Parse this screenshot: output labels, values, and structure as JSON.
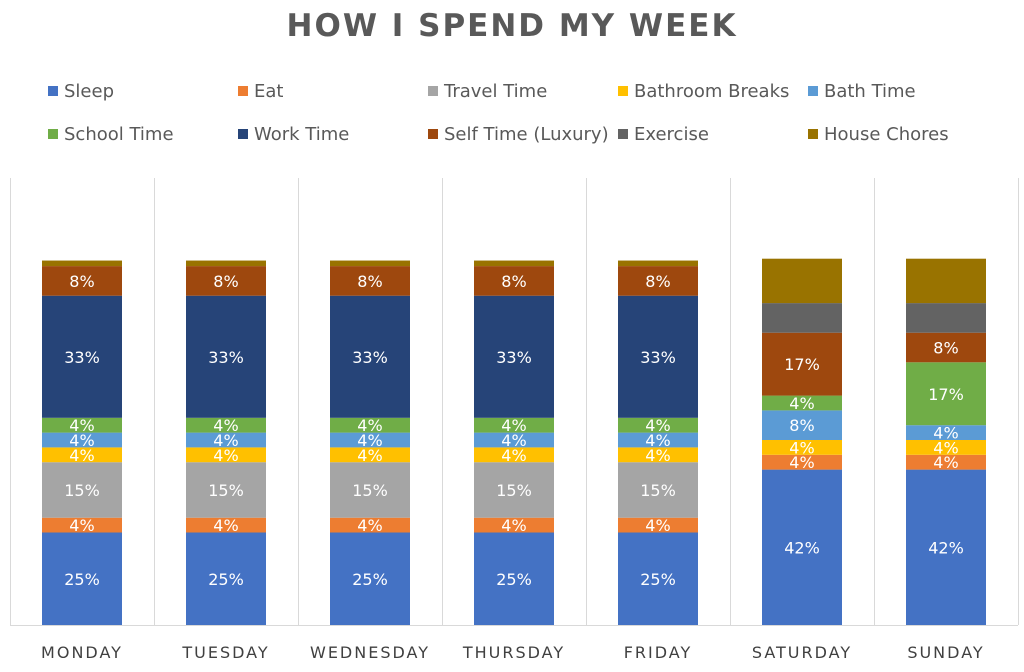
{
  "chart_data": {
    "type": "bar",
    "stacked": true,
    "title": "HOW I SPEND MY WEEK",
    "xlabel": "",
    "ylabel": "",
    "ylim": [
      0,
      100
    ],
    "legend_position": "top",
    "grid": "vertical category separators",
    "categories": [
      "MONDAY",
      "TUESDAY",
      "WEDNESDAY",
      "THURSDAY",
      "FRIDAY",
      "SATURDAY",
      "SUNDAY"
    ],
    "series": [
      {
        "name": "Sleep",
        "color": "#4472c4",
        "values": [
          25,
          25,
          25,
          25,
          25,
          42,
          42
        ],
        "labels": [
          "25%",
          "25%",
          "25%",
          "25%",
          "25%",
          "42%",
          "42%"
        ]
      },
      {
        "name": "Eat",
        "color": "#ed7d31",
        "values": [
          4,
          4,
          4,
          4,
          4,
          4,
          4
        ],
        "labels": [
          "4%",
          "4%",
          "4%",
          "4%",
          "4%",
          "4%",
          "4%"
        ]
      },
      {
        "name": "Travel Time",
        "color": "#a5a5a5",
        "values": [
          15,
          15,
          15,
          15,
          15,
          0,
          0
        ],
        "labels": [
          "15%",
          "15%",
          "15%",
          "15%",
          "15%",
          "",
          ""
        ]
      },
      {
        "name": "Bathroom Breaks",
        "color": "#ffc000",
        "values": [
          4,
          4,
          4,
          4,
          4,
          4,
          4
        ],
        "labels": [
          "4%",
          "4%",
          "4%",
          "4%",
          "4%",
          "4%",
          "4%"
        ]
      },
      {
        "name": "Bath Time",
        "color": "#5b9bd5",
        "values": [
          4,
          4,
          4,
          4,
          4,
          8,
          4
        ],
        "labels": [
          "4%",
          "4%",
          "4%",
          "4%",
          "4%",
          "8%",
          "4%"
        ]
      },
      {
        "name": "School Time",
        "color": "#70ad47",
        "values": [
          4,
          4,
          4,
          4,
          4,
          4,
          17
        ],
        "labels": [
          "4%",
          "4%",
          "4%",
          "4%",
          "4%",
          "4%",
          "17%"
        ]
      },
      {
        "name": "Work Time",
        "color": "#264478",
        "values": [
          33,
          33,
          33,
          33,
          33,
          0,
          0
        ],
        "labels": [
          "33%",
          "33%",
          "33%",
          "33%",
          "33%",
          "",
          ""
        ]
      },
      {
        "name": "Self Time (Luxury)",
        "color": "#9e480e",
        "values": [
          8,
          8,
          8,
          8,
          8,
          17,
          8
        ],
        "labels": [
          "8%",
          "8%",
          "8%",
          "8%",
          "8%",
          "17%",
          "8%"
        ]
      },
      {
        "name": "Exercise",
        "color": "#636363",
        "values": [
          0,
          0,
          0,
          0,
          0,
          8,
          8
        ],
        "labels": [
          "",
          "",
          "",
          "",
          "",
          "",
          ""
        ]
      },
      {
        "name": "House Chores",
        "color": "#997300",
        "values": [
          1.5,
          1.5,
          1.5,
          1.5,
          1.5,
          12,
          12
        ],
        "labels": [
          "",
          "",
          "",
          "",
          "",
          "",
          ""
        ]
      }
    ]
  }
}
